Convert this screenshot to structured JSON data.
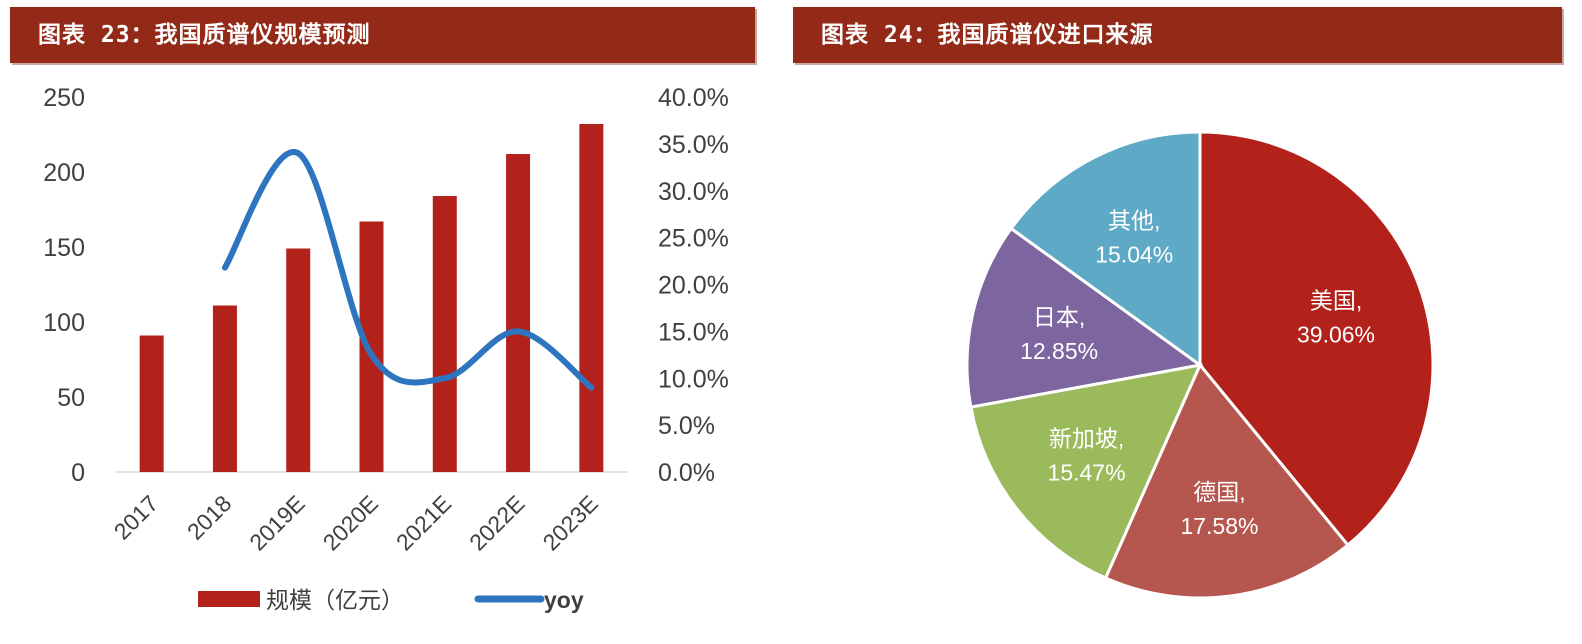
{
  "left_header": {
    "title": "图表 23：我国质谱仪规模预测"
  },
  "right_header": {
    "title": "图表 24：我国质谱仪进口来源"
  },
  "chart_data": [
    {
      "type": "bar+line",
      "categories": [
        "2017",
        "2018",
        "2019E",
        "2020E",
        "2021E",
        "2022E",
        "2023E"
      ],
      "series": [
        {
          "name": "规模（亿元）",
          "type": "bar",
          "axis": "left",
          "color": "#b3211b",
          "values": [
            91,
            111,
            149,
            167,
            184,
            212,
            232
          ]
        },
        {
          "name": "yoy",
          "type": "line",
          "smooth": true,
          "axis": "right",
          "color": "#2e75c0",
          "values": [
            null,
            21.8,
            34.0,
            12.5,
            10.0,
            15.0,
            9.0
          ]
        }
      ],
      "y_left": {
        "lim": [
          0,
          250
        ],
        "ticks": [
          "0",
          "50",
          "100",
          "150",
          "200",
          "250"
        ]
      },
      "y_right": {
        "lim": [
          0,
          40
        ],
        "ticks": [
          "0.0%",
          "5.0%",
          "10.0%",
          "15.0%",
          "20.0%",
          "25.0%",
          "30.0%",
          "35.0%",
          "40.0%"
        ]
      },
      "grid": false,
      "legend": "bottom"
    },
    {
      "type": "pie",
      "start": "top",
      "direction": "clockwise",
      "slices": [
        {
          "label": "美国,",
          "value": 39.06,
          "text": "39.06%",
          "color": "#b3211b"
        },
        {
          "label": "德国,",
          "value": 17.58,
          "text": "17.58%",
          "color": "#b5574f"
        },
        {
          "label": "新加坡,",
          "value": 15.47,
          "text": "15.47%",
          "color": "#9bba5b"
        },
        {
          "label": "日本,",
          "value": 12.85,
          "text": "12.85%",
          "color": "#7d65a0"
        },
        {
          "label": "其他,",
          "value": 15.04,
          "text": "15.04%",
          "color": "#5ea9c6"
        }
      ]
    }
  ]
}
